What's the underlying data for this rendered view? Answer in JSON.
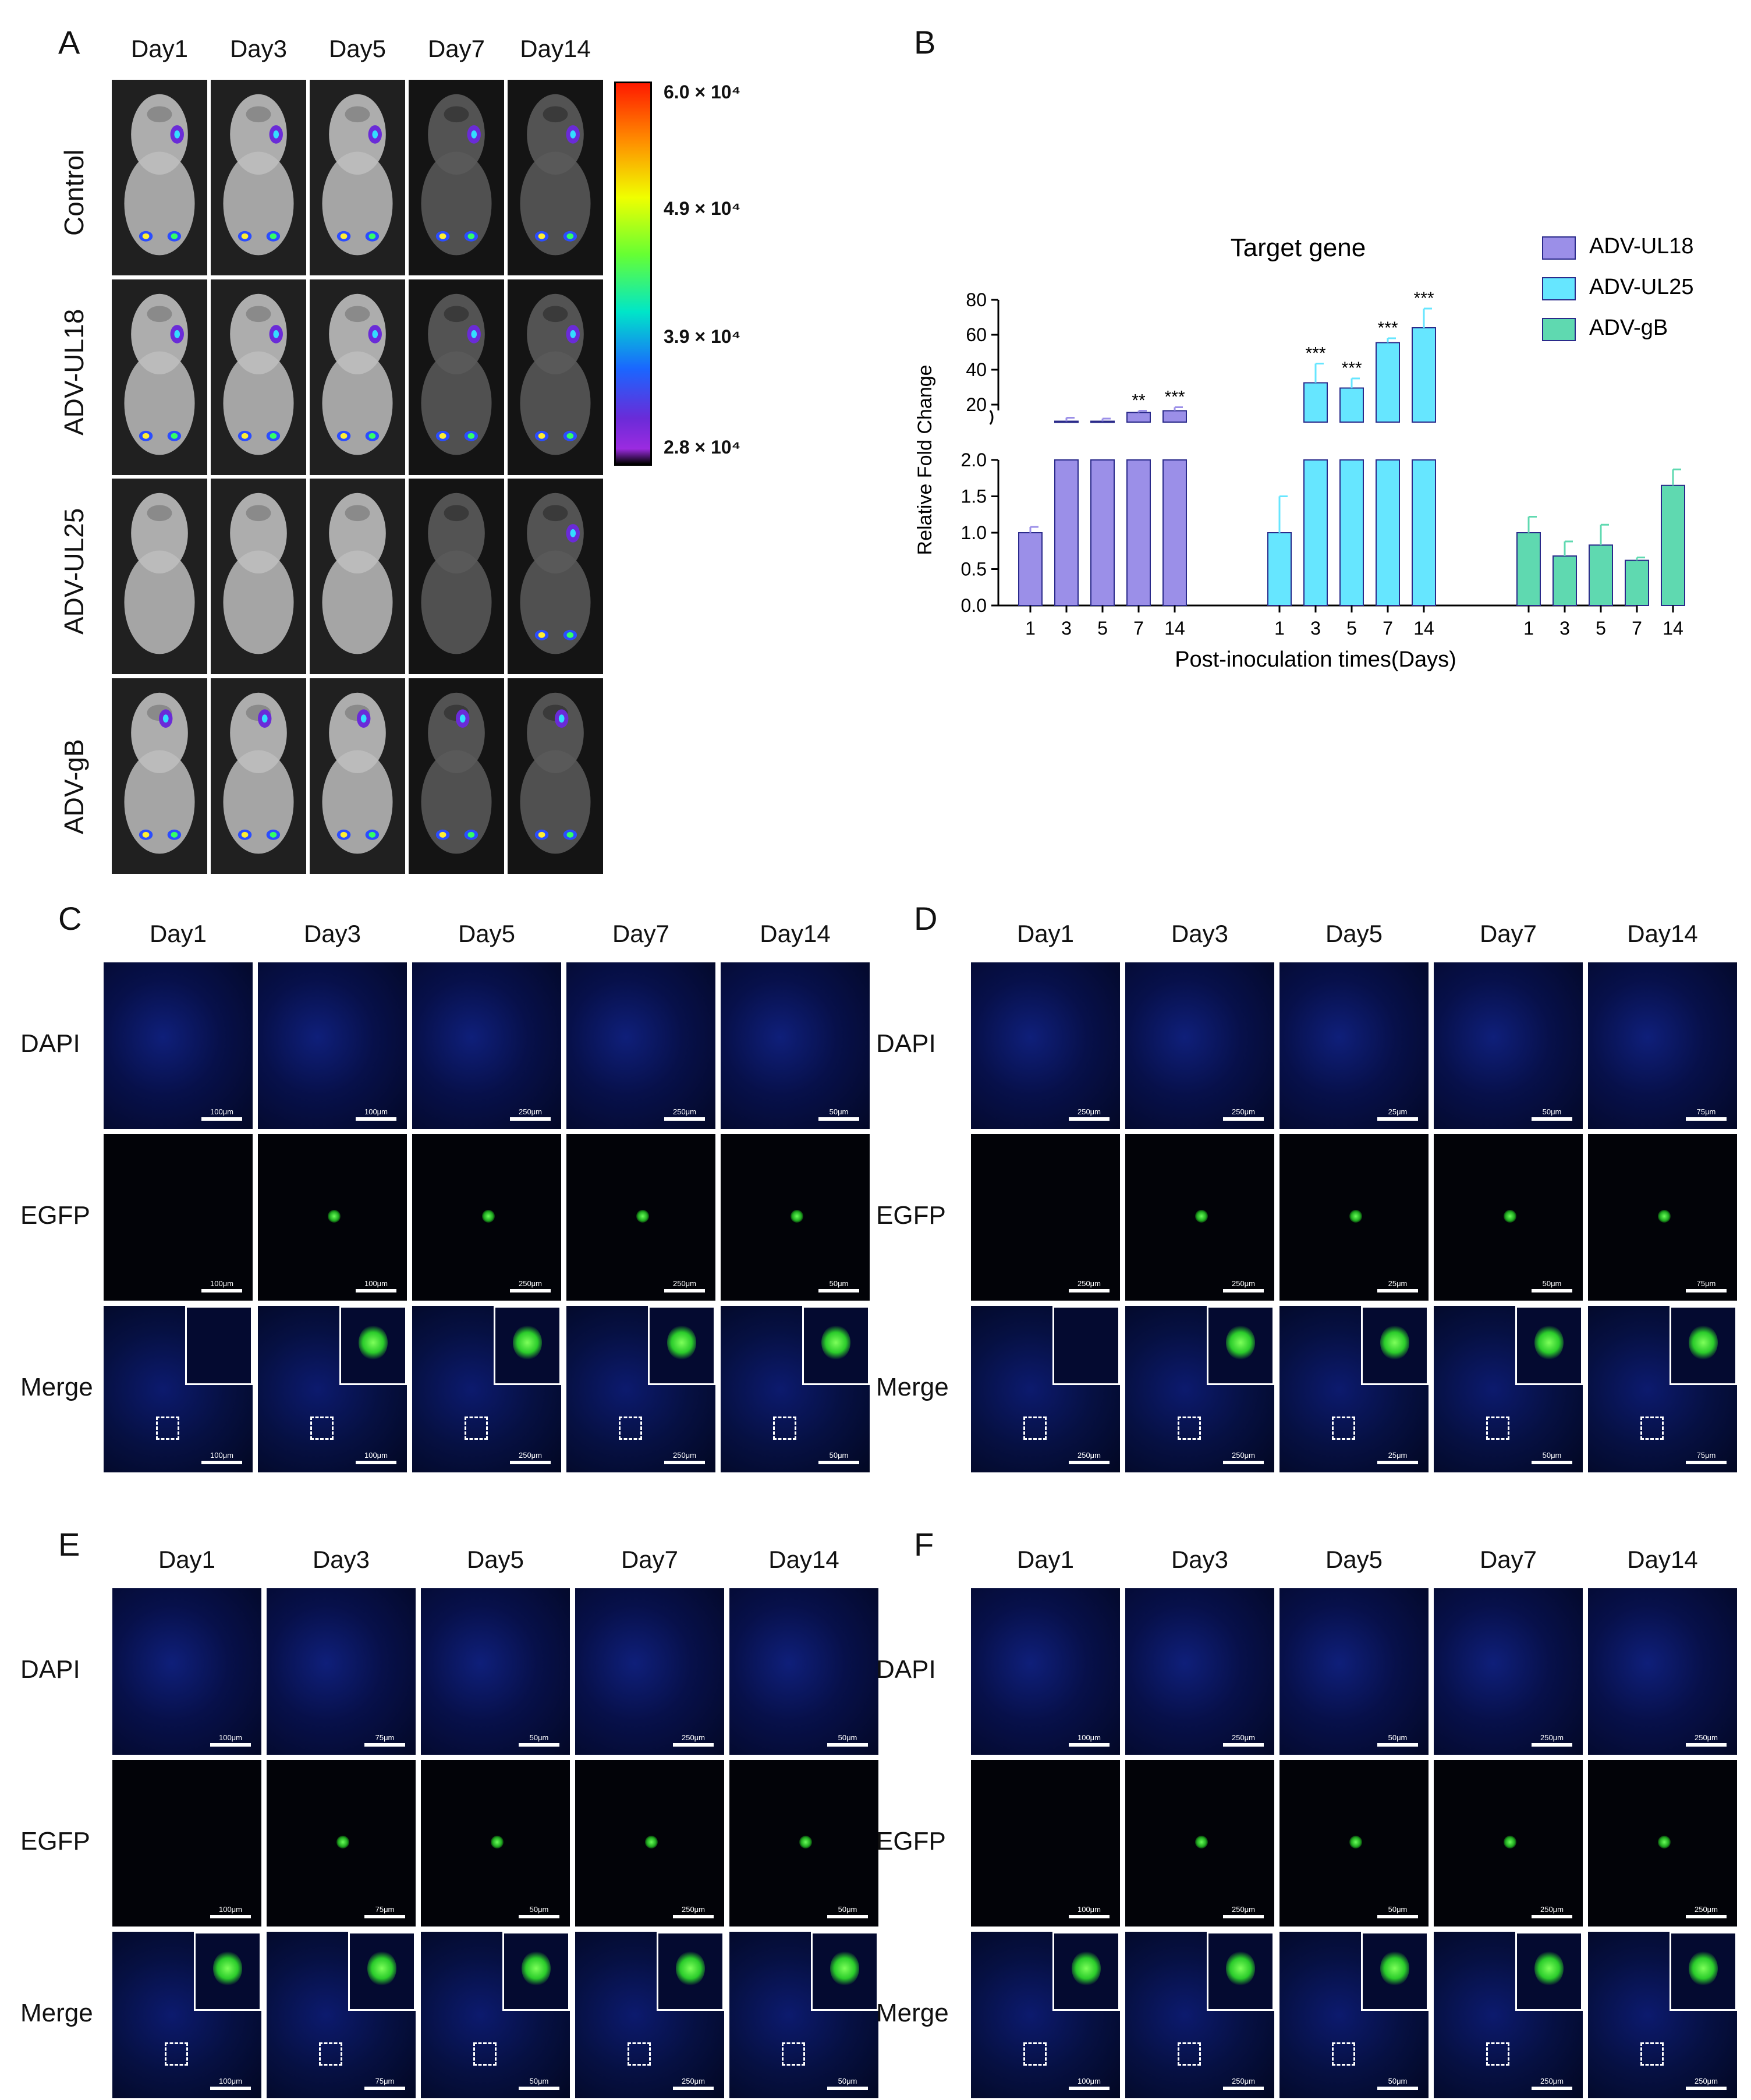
{
  "panels": {
    "A": "A",
    "B": "B",
    "C": "C",
    "D": "D",
    "E": "E",
    "F": "F"
  },
  "days": [
    "Day1",
    "Day3",
    "Day5",
    "Day7",
    "Day14"
  ],
  "panel_a": {
    "rows": [
      "Control",
      "ADV-UL18",
      "ADV-UL25",
      "ADV-gB"
    ],
    "colorbar": {
      "labels": [
        "6.0 × 10⁴",
        "4.9 × 10⁴",
        "3.9 × 10⁴",
        "2.8 × 10⁴"
      ],
      "colors": [
        "#ff0000",
        "#ffff00",
        "#00ff66",
        "#00ccff",
        "#3333ff",
        "#a020f0",
        "#000000"
      ]
    }
  },
  "fluor_rows": [
    "DAPI",
    "EGFP",
    "Merge"
  ],
  "scalebars": {
    "C": {
      "DAPI": [
        "100μm",
        "100μm",
        "250μm",
        "250μm",
        "50μm"
      ],
      "EGFP": [
        "100μm",
        "100μm",
        "250μm",
        "250μm",
        "50μm"
      ],
      "Merge": [
        "100μm",
        "100μm",
        "250μm",
        "250μm",
        "50μm"
      ]
    },
    "D": {
      "DAPI": [
        "250μm",
        "250μm",
        "25μm",
        "50μm",
        "75μm"
      ],
      "EGFP": [
        "250μm",
        "250μm",
        "25μm",
        "50μm",
        "75μm"
      ],
      "Merge": [
        "250μm",
        "250μm",
        "25μm",
        "50μm",
        "75μm"
      ]
    },
    "E": {
      "DAPI": [
        "100μm",
        "75μm",
        "50μm",
        "250μm",
        "50μm"
      ],
      "EGFP": [
        "100μm",
        "75μm",
        "50μm",
        "250μm",
        "50μm"
      ],
      "Merge": [
        "100μm",
        "75μm",
        "50μm",
        "250μm",
        "50μm"
      ]
    },
    "F": {
      "DAPI": [
        "100μm",
        "250μm",
        "50μm",
        "250μm",
        "250μm"
      ],
      "EGFP": [
        "100μm",
        "250μm",
        "50μm",
        "250μm",
        "250μm"
      ],
      "Merge": [
        "100μm",
        "250μm",
        "50μm",
        "250μm",
        "250μm"
      ]
    }
  },
  "chart_data": {
    "type": "bar",
    "title": "Target gene",
    "ylabel": "Relative Fold Change",
    "xlabel": "Post-inoculation times(Days)",
    "categories": [
      "1",
      "3",
      "5",
      "7",
      "14"
    ],
    "y_axis_lower": {
      "ylim": [
        0,
        2.0
      ],
      "ticks": [
        "0.0",
        "0.5",
        "1.0",
        "1.5",
        "2.0"
      ]
    },
    "y_axis_upper": {
      "ylim": [
        10,
        80
      ],
      "ticks": [
        "20",
        "40",
        "60",
        "80"
      ]
    },
    "legend_position": "top-right",
    "series": [
      {
        "name": "ADV-UL18",
        "color": "#9b8fe8",
        "values": [
          1.0,
          10.5,
          10.5,
          15.5,
          16.5
        ],
        "errors": [
          0.08,
          2.0,
          1.5,
          1.0,
          2.0
        ],
        "significance": [
          "",
          "",
          "",
          "**",
          "***"
        ]
      },
      {
        "name": "ADV-UL25",
        "color": "#66e6ff",
        "values": [
          1.0,
          32.5,
          29.5,
          55.5,
          64.0
        ],
        "errors": [
          0.5,
          11.0,
          5.5,
          2.5,
          11.0
        ],
        "significance": [
          "",
          "***",
          "***",
          "***",
          "***"
        ]
      },
      {
        "name": "ADV-gB",
        "color": "#5fd9b0",
        "values": [
          1.0,
          0.68,
          0.83,
          0.62,
          1.65
        ],
        "errors": [
          0.22,
          0.2,
          0.28,
          0.04,
          0.22
        ],
        "significance": [
          "",
          "",
          "",
          "",
          ""
        ]
      }
    ]
  }
}
